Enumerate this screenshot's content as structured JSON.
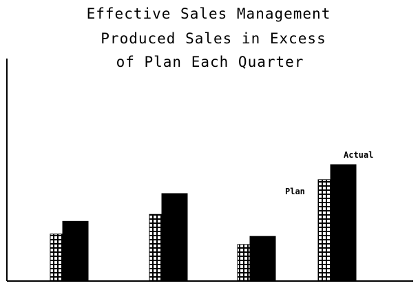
{
  "chart_data": {
    "type": "bar",
    "title_lines": [
      "Effective Sales Management",
      "Produced Sales in Excess",
      "of Plan Each Quarter"
    ],
    "xlabel": "",
    "ylabel": "",
    "categories": [
      "",
      "",
      "",
      ""
    ],
    "ylim": [
      0,
      100
    ],
    "grid": false,
    "series": [
      {
        "name": "Plan",
        "pattern": "grid",
        "values": [
          40,
          57,
          31,
          87
        ]
      },
      {
        "name": "Actual",
        "pattern": "solid",
        "values": [
          51,
          75,
          38,
          100
        ]
      }
    ],
    "colors": {
      "ink": "#000000",
      "paper": "#ffffff"
    }
  }
}
